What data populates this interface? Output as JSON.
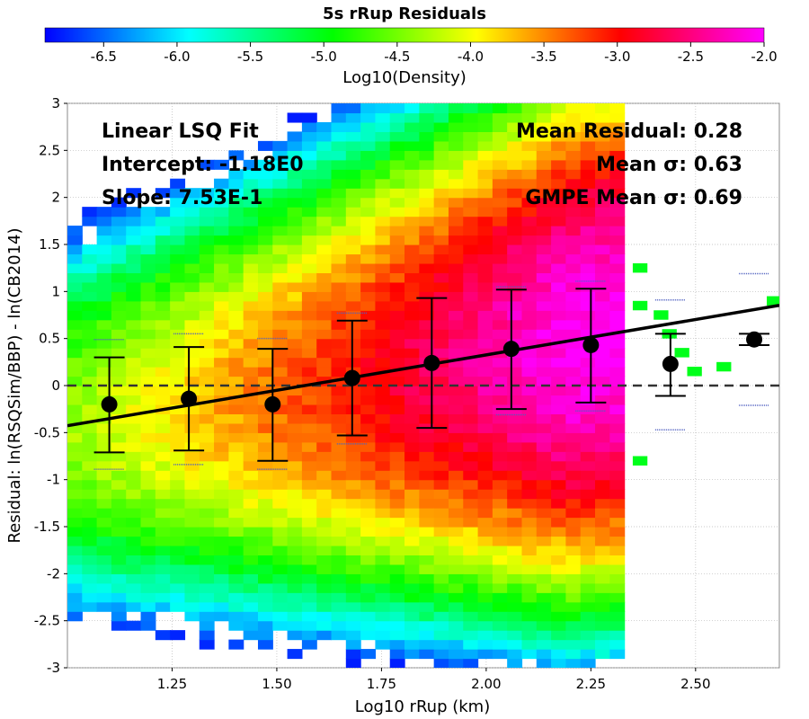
{
  "chart_data": {
    "type": "heatmap",
    "title": "5s rRup Residuals",
    "xlabel": "Log10 rRup (km)",
    "ylabel": "Residual: ln(RSQSim/BBP) - ln(CB2014)",
    "xlim": [
      1.0,
      2.7
    ],
    "ylim": [
      -3,
      3
    ],
    "x_ticks": [
      "1.25",
      "1.50",
      "1.75",
      "2.00",
      "2.25",
      "2.50"
    ],
    "x_tick_values": [
      1.25,
      1.5,
      1.75,
      2.0,
      2.25,
      2.5
    ],
    "y_ticks": [
      "-3",
      "-2.5",
      "-2",
      "-1.5",
      "-1",
      "-0.5",
      "0",
      "0.5",
      "1",
      "1.5",
      "2",
      "2.5",
      "3"
    ],
    "y_tick_values": [
      -3,
      -2.5,
      -2,
      -1.5,
      -1,
      -0.5,
      0,
      0.5,
      1,
      1.5,
      2,
      2.5,
      3
    ],
    "grid": true,
    "colorbar": {
      "label": "Log10(Density)",
      "range": [
        -6.9,
        -2.0
      ],
      "ticks": [
        "-6.5",
        "-6.0",
        "-5.5",
        "-5.0",
        "-4.5",
        "-4.0",
        "-3.5",
        "-3.0",
        "-2.5",
        "-2.0"
      ],
      "tick_values": [
        -6.5,
        -6.0,
        -5.5,
        -5.0,
        -4.5,
        -4.0,
        -3.5,
        -3.0,
        -2.5,
        -2.0
      ],
      "colors": [
        "#0000ff",
        "#00ffff",
        "#00ff00",
        "#ffff00",
        "#ff0000",
        "#ff00ff"
      ]
    },
    "annotations_left": [
      "Linear LSQ Fit",
      "Intercept: -1.18E0",
      "Slope: 7.53E-1"
    ],
    "annotations_right": [
      "Mean Residual: 0.28",
      "Mean σ: 0.63",
      "GMPE Mean σ: 0.69"
    ],
    "fit_line": {
      "intercept": -1.18,
      "slope": 0.753
    },
    "zero_line": 0,
    "binned_means": {
      "x": [
        1.1,
        1.29,
        1.49,
        1.68,
        1.87,
        2.06,
        2.25,
        2.44,
        2.64
      ],
      "mean": [
        -0.2,
        -0.14,
        -0.2,
        0.08,
        0.24,
        0.39,
        0.43,
        0.23,
        0.49
      ],
      "upper": [
        0.3,
        0.41,
        0.39,
        0.69,
        0.93,
        1.02,
        1.03,
        0.55,
        0.55
      ],
      "lower": [
        -0.71,
        -0.69,
        -0.8,
        -0.53,
        -0.45,
        -0.25,
        -0.18,
        -0.11,
        0.43
      ],
      "gmpe_upper": [
        0.49,
        0.55,
        0.5,
        0.77,
        0.93,
        1.05,
        1.11,
        0.91,
        1.19
      ],
      "gmpe_lower": [
        -0.89,
        -0.84,
        -0.89,
        -0.62,
        -0.45,
        -0.31,
        -0.27,
        -0.47,
        -0.21
      ]
    }
  }
}
